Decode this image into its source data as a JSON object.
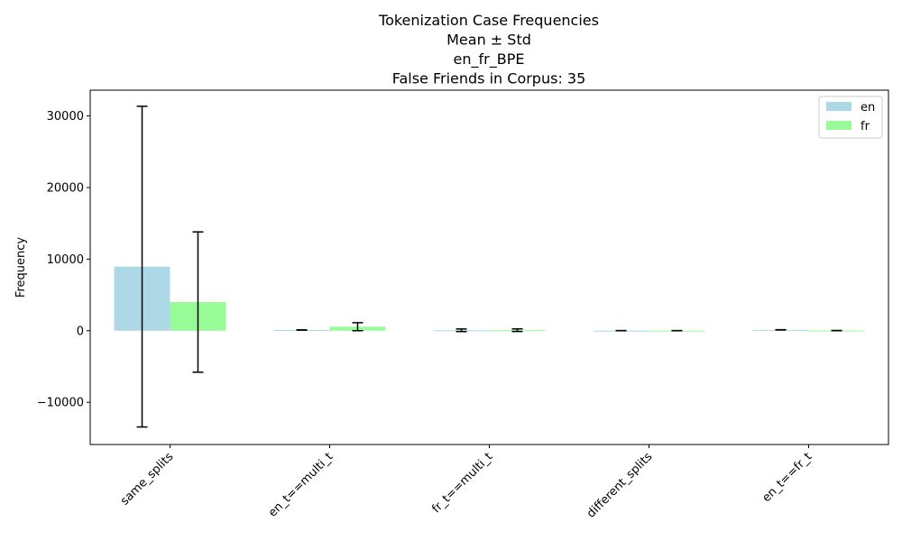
{
  "chart_data": {
    "type": "bar",
    "title_lines": [
      "Tokenization Case Frequencies",
      "Mean ± Std",
      "en_fr_BPE",
      "False Friends in Corpus: 35"
    ],
    "xlabel": "",
    "ylabel": "Frequency",
    "categories": [
      "same_splits",
      "en_t==multi_t",
      "fr_t==multi_t",
      "different_splits",
      "en_t==fr_t"
    ],
    "series": [
      {
        "name": "en",
        "color": "#add8e6",
        "values": [
          8950,
          100,
          60,
          10,
          120
        ],
        "std": [
          22400,
          20,
          180,
          10,
          20
        ]
      },
      {
        "name": "fr",
        "color": "#98fb98",
        "values": [
          4000,
          560,
          70,
          10,
          20
        ],
        "std": [
          9800,
          560,
          180,
          10,
          10
        ]
      }
    ],
    "ylim": [
      -15900,
      33600
    ],
    "yticks": [
      -10000,
      0,
      10000,
      20000,
      30000
    ],
    "ytick_labels": [
      "−10000",
      "0",
      "10000",
      "20000",
      "30000"
    ],
    "legend_position": "top-right",
    "grid": false
  }
}
